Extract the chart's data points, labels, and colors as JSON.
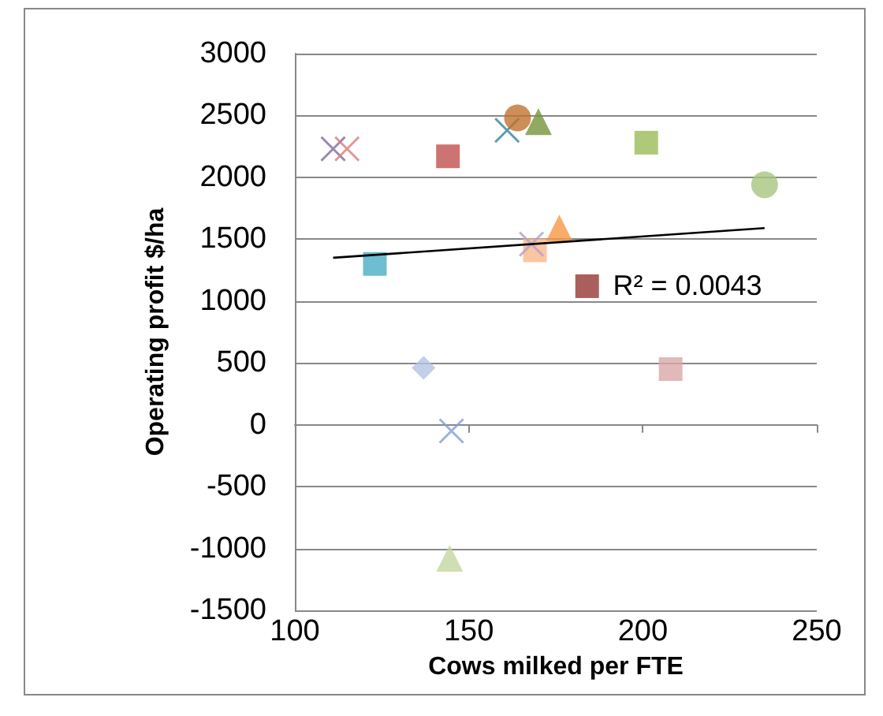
{
  "chart_data": {
    "type": "scatter",
    "xlabel": "Cows milked per FTE",
    "ylabel": "Operating profit $/ha",
    "xlim": [
      100,
      250
    ],
    "xticks": [
      100,
      150,
      200,
      250
    ],
    "ylim": [
      -1500,
      3000
    ],
    "yticks": [
      -1500,
      -1000,
      -500,
      0,
      500,
      1000,
      1500,
      2000,
      2500,
      3000
    ],
    "grid": "y",
    "annotations": [
      "R² = 0.0043"
    ],
    "series": [
      {
        "color": "#7f6a9f",
        "marker": "cross",
        "x": [
          111
        ],
        "values": [
          2230
        ]
      },
      {
        "color": "#e07b7b",
        "marker": "cross",
        "x": [
          115
        ],
        "values": [
          2230
        ]
      },
      {
        "color": "#c0504d",
        "marker": "square",
        "x": [
          144
        ],
        "values": [
          2170
        ]
      },
      {
        "color": "#31859c",
        "marker": "cross",
        "x": [
          161
        ],
        "values": [
          2380
        ]
      },
      {
        "color": "#c0722f",
        "marker": "circle",
        "x": [
          164
        ],
        "values": [
          2480
        ]
      },
      {
        "color": "#77933c",
        "marker": "triangle",
        "x": [
          170
        ],
        "values": [
          2450
        ]
      },
      {
        "color": "#9bbb59",
        "marker": "square",
        "x": [
          201
        ],
        "values": [
          2280
        ]
      },
      {
        "color": "#a9c47f",
        "marker": "circle",
        "x": [
          235
        ],
        "values": [
          1940
        ]
      },
      {
        "color": "#f79646",
        "marker": "triangle",
        "x": [
          176
        ],
        "values": [
          1590
        ]
      },
      {
        "color": "#fab68a",
        "marker": "square",
        "x": [
          169
        ],
        "values": [
          1410
        ]
      },
      {
        "color": "#b3a2c7",
        "marker": "cross",
        "x": [
          168
        ],
        "values": [
          1460
        ]
      },
      {
        "color": "#4bacc6",
        "marker": "square",
        "x": [
          123
        ],
        "values": [
          1300
        ]
      },
      {
        "color": "#953735",
        "marker": "square",
        "x": [
          184
        ],
        "values": [
          1120
        ]
      },
      {
        "color": "#b3c3e0",
        "marker": "diamond",
        "x": [
          137
        ],
        "values": [
          460
        ]
      },
      {
        "color": "#d9a7a7",
        "marker": "square",
        "x": [
          208
        ],
        "values": [
          450
        ]
      },
      {
        "color": "#7f9fd8",
        "marker": "cross",
        "x": [
          145
        ],
        "values": [
          -50
        ]
      },
      {
        "color": "#c4d6a0",
        "marker": "triangle",
        "x": [
          144.5
        ],
        "values": [
          -1080
        ]
      },
      {
        "type": "line",
        "color": "#000000",
        "marker": "none",
        "x": [
          111,
          235
        ],
        "values": [
          1350,
          1590
        ]
      }
    ]
  }
}
